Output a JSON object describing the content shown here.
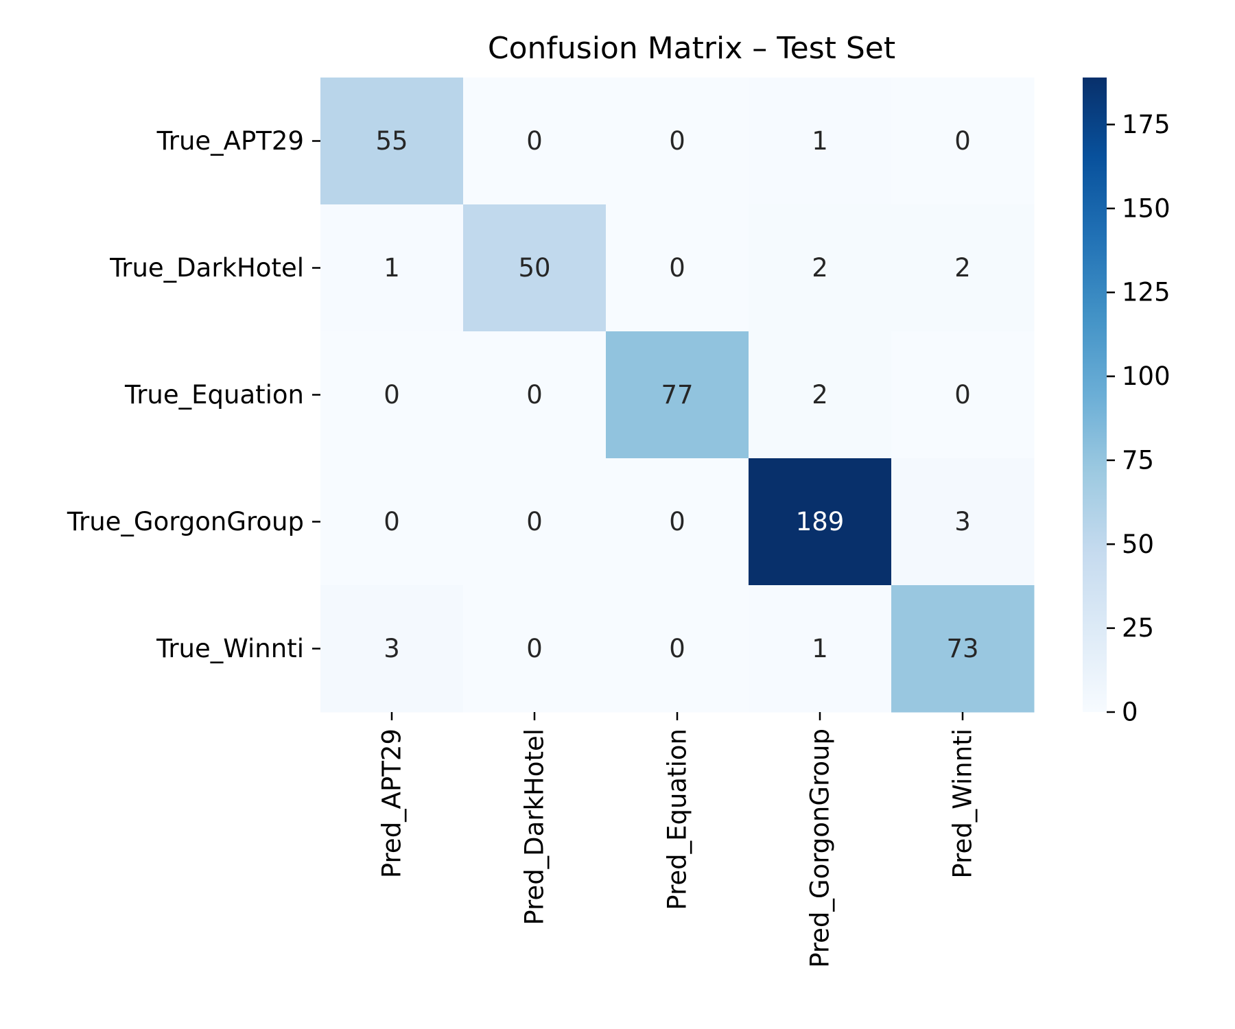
{
  "chart_data": {
    "type": "heatmap",
    "title": "Confusion Matrix – Test Set",
    "xlabel": "",
    "ylabel": "",
    "row_labels": [
      "True_APT29",
      "True_DarkHotel",
      "True_Equation",
      "True_GorgonGroup",
      "True_Winnti"
    ],
    "col_labels": [
      "Pred_APT29",
      "Pred_DarkHotel",
      "Pred_Equation",
      "Pred_GorgonGroup",
      "Pred_Winnti"
    ],
    "values": [
      [
        55,
        0,
        0,
        1,
        0
      ],
      [
        1,
        50,
        0,
        2,
        2
      ],
      [
        0,
        0,
        77,
        2,
        0
      ],
      [
        0,
        0,
        0,
        189,
        3
      ],
      [
        3,
        0,
        0,
        1,
        73
      ]
    ],
    "colormap": "Blues",
    "colorbar": {
      "vmin": 0,
      "vmax": 189,
      "ticks": [
        0,
        25,
        50,
        75,
        100,
        125,
        150,
        175
      ]
    },
    "grid": false,
    "legend": "right"
  }
}
